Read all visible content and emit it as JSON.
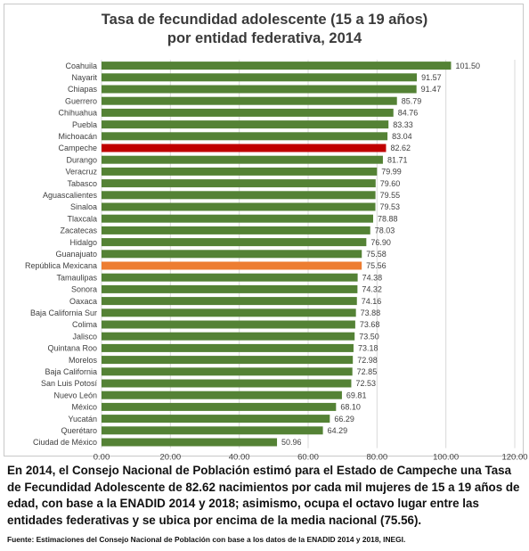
{
  "title_line1": "Tasa de fecundidad adolescente (15 a 19 años)",
  "title_line2": "por entidad federativa, 2014",
  "summary": "En 2014, el Consejo Nacional de Población estimó para el Estado de Campeche una Tasa de Fecundidad Adolescente de 82.62 nacimientos por cada mil mujeres de 15 a 19 años de edad, con base a la ENADID 2014 y 2018; asimismo, ocupa el octavo lugar entre las entidades federativas y se ubica por encima de la media nacional (75.56).",
  "source": "Fuente: Estimaciones del Consejo Nacional de Población con base a los datos de la ENADID 2014 y 2018, INEGI.",
  "colors": {
    "default_bar": "#548235",
    "highlight_bar": "#c00000",
    "national_bar": "#ed7d31",
    "grid": "#d9d9d9",
    "text": "#404040"
  },
  "chart_data": {
    "type": "bar",
    "orientation": "horizontal",
    "title": "Tasa de fecundidad adolescente (15 a 19 años) por entidad federativa, 2014",
    "xlabel": "",
    "ylabel": "",
    "xlim": [
      0,
      120
    ],
    "ticks": [
      "0.00",
      "20.00",
      "40.00",
      "60.00",
      "80.00",
      "100.00",
      "120.00"
    ],
    "tick_values": [
      0,
      20,
      40,
      60,
      80,
      100,
      120
    ],
    "grid": true,
    "legend": "none",
    "highlight": "Campeche",
    "national": "República Mexicana",
    "categories": [
      "Coahuila",
      "Nayarit",
      "Chiapas",
      "Guerrero",
      "Chihuahua",
      "Puebla",
      "Michoacán",
      "Campeche",
      "Durango",
      "Veracruz",
      "Tabasco",
      "Aguascalientes",
      "Sinaloa",
      "Tlaxcala",
      "Zacatecas",
      "Hidalgo",
      "Guanajuato",
      "República Mexicana",
      "Tamaulipas",
      "Sonora",
      "Oaxaca",
      "Baja California Sur",
      "Colima",
      "Jalisco",
      "Quintana Roo",
      "Morelos",
      "Baja California",
      "San Luis Potosí",
      "Nuevo León",
      "México",
      "Yucatán",
      "Querétaro",
      "Ciudad de México"
    ],
    "values": [
      101.5,
      91.57,
      91.47,
      85.79,
      84.76,
      83.33,
      83.04,
      82.62,
      81.71,
      79.99,
      79.6,
      79.55,
      79.53,
      78.88,
      78.03,
      76.9,
      75.58,
      75.56,
      74.38,
      74.32,
      74.16,
      73.88,
      73.68,
      73.5,
      73.18,
      72.98,
      72.85,
      72.53,
      69.81,
      68.1,
      66.29,
      64.29,
      50.96
    ],
    "value_labels": [
      "101.50",
      "91.57",
      "91.47",
      "85.79",
      "84.76",
      "83.33",
      "83.04",
      "82.62",
      "81.71",
      "79.99",
      "79.60",
      "79.55",
      "79.53",
      "78.88",
      "78.03",
      "76.90",
      "75.58",
      "75.56",
      "74.38",
      "74.32",
      "74.16",
      "73.88",
      "73.68",
      "73.50",
      "73.18",
      "72.98",
      "72.85",
      "72.53",
      "69.81",
      "68.10",
      "66.29",
      "64.29",
      "50.96"
    ]
  }
}
